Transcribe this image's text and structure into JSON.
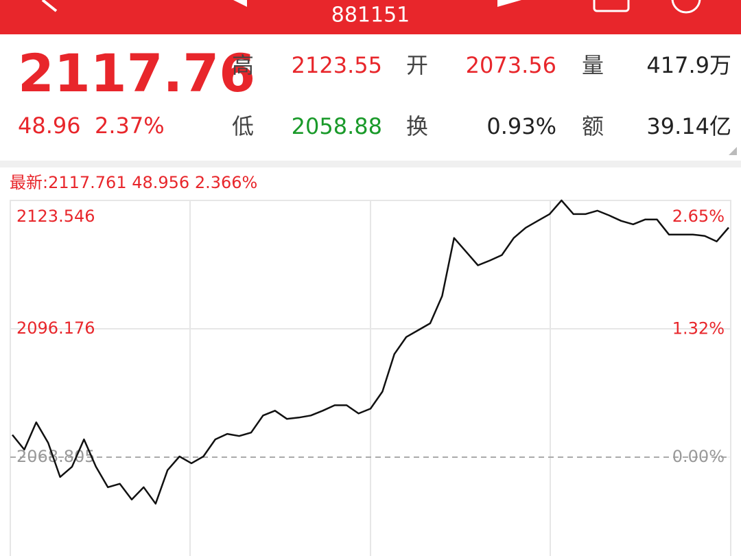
{
  "header": {
    "title": "881151"
  },
  "quote": {
    "price": "2117.76",
    "change": "48.96",
    "change_pct": "2.37%",
    "stats": [
      {
        "label": "高",
        "value": "2123.55",
        "color": "#e8262b"
      },
      {
        "label": "开",
        "value": "2073.56",
        "color": "#e8262b"
      },
      {
        "label": "量",
        "value": "417.9万",
        "color": "#222222"
      },
      {
        "label": "低",
        "value": "2058.88",
        "color": "#1a9a2a"
      },
      {
        "label": "换",
        "value": "0.93%",
        "color": "#222222"
      },
      {
        "label": "额",
        "value": "39.14亿",
        "color": "#222222"
      }
    ]
  },
  "chart_data": {
    "type": "line",
    "subtitle": "最新:2117.761 48.956 2.366%",
    "series": [
      {
        "color": "#111111",
        "values": [
          2073.56,
          2070.41,
          2076.23,
          2071.86,
          2064.58,
          2066.77,
          2072.59,
          2066.77,
          2062.4,
          2063.13,
          2059.78,
          2062.4,
          2058.88,
          2066.04,
          2068.95,
          2067.5,
          2068.95,
          2072.59,
          2073.76,
          2073.32,
          2074.05,
          2077.69,
          2078.71,
          2076.96,
          2077.25,
          2077.69,
          2078.71,
          2079.87,
          2079.87,
          2078.12,
          2079.14,
          2082.78,
          2090.79,
          2094.43,
          2095.89,
          2097.34,
          2103.16,
          2115.54,
          2112.63,
          2109.72,
          2110.74,
          2111.9,
          2115.54,
          2117.72,
          2119.18,
          2120.64,
          2123.546,
          2120.64,
          2120.64,
          2121.36,
          2120.34,
          2119.18,
          2118.45,
          2119.47,
          2119.47,
          2116.27,
          2116.27,
          2116.27,
          2115.98,
          2114.81,
          2117.761
        ]
      }
    ],
    "ylim": [
      2014.064,
      2123.546
    ],
    "yticks": [
      2123.546,
      2096.176,
      2068.805
    ],
    "y2lim": [
      -2.65,
      2.65
    ],
    "y2ticks": [
      {
        "value": 2.65,
        "label": "2.65%"
      },
      {
        "value": 1.32,
        "label": "1.32%"
      },
      {
        "value": 0,
        "label": "0.00%"
      }
    ]
  }
}
